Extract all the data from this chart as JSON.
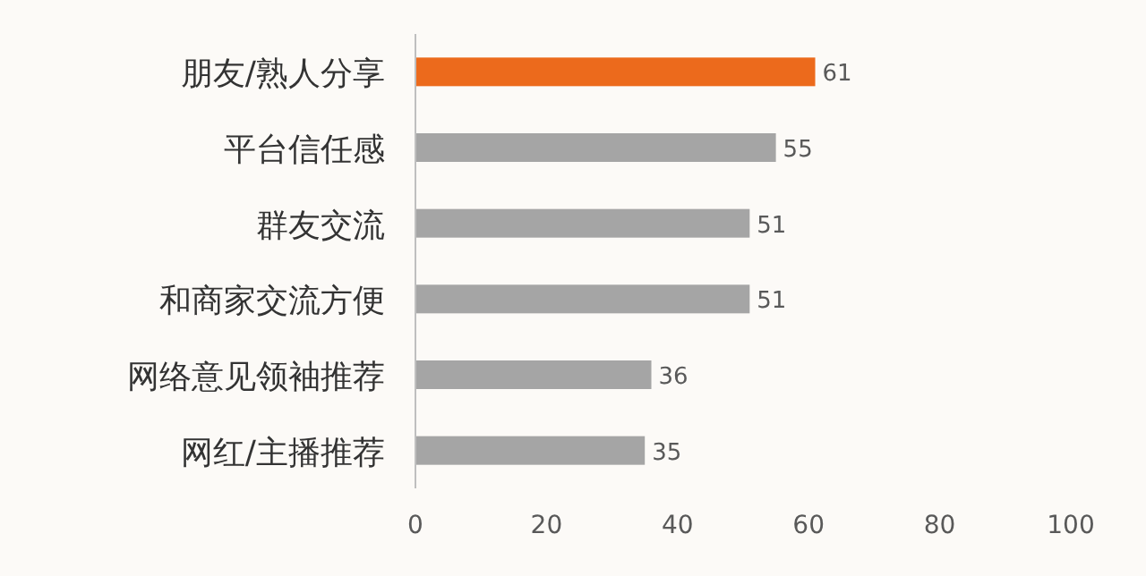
{
  "chart_data": {
    "type": "bar",
    "orientation": "horizontal",
    "categories": [
      "朋友/熟人分享",
      "平台信任感",
      "群友交流",
      "和商家交流方便",
      "网络意见领袖推荐",
      "网红/主播推荐"
    ],
    "values": [
      61,
      55,
      51,
      51,
      36,
      35
    ],
    "colors": [
      "#ec6a1c",
      "#a5a5a5",
      "#a5a5a5",
      "#a5a5a5",
      "#a5a5a5",
      "#a5a5a5"
    ],
    "xlim": [
      0,
      100
    ],
    "xticks": [
      0,
      20,
      40,
      60,
      80,
      100
    ],
    "data_labels": true
  }
}
